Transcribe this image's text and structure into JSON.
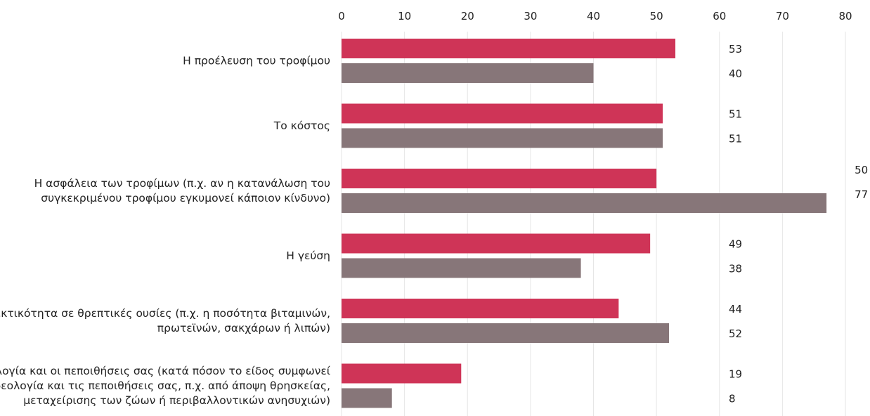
{
  "chart_data": {
    "type": "bar",
    "orientation": "horizontal",
    "xlim": [
      0,
      80
    ],
    "ticks": [
      0,
      10,
      20,
      30,
      40,
      50,
      60,
      70,
      80
    ],
    "axis_position": "top",
    "grid": true,
    "legend": "none",
    "categories": [
      [
        "Η προέλευση του τροφίμου"
      ],
      [
        "Το κόστος"
      ],
      [
        "Η ασφάλεια των τροφίμων (π.χ. αν η κατανάλωση του",
        "συγκεκριμένου τροφίμου εγκυμονεί κάποιον κίνδυνο)"
      ],
      [
        "Η γεύση"
      ],
      [
        "Η περιεκτικότητα σε θρεπτικές ουσίες (π.χ. η ποσότητα βιταμινών,",
        "πρωτεϊνών, σακχάρων ή λιπών)"
      ],
      [
        "Η ιδεολογία και οι πεποιθήσεις σας (κατά πόσον το είδος συμφωνεί",
        "με την ιδεολογία και τις πεποιθήσεις σας, π.χ. από άποψη θρησκείας,",
        "μεταχείρισης των ζώων ή περιβαλλοντικών ανησυχιών)"
      ]
    ],
    "series": [
      {
        "color": "#cf3457",
        "values": [
          53,
          51,
          50,
          49,
          44,
          19
        ]
      },
      {
        "color": "#877679",
        "values": [
          40,
          51,
          77,
          38,
          52,
          8
        ]
      }
    ]
  }
}
